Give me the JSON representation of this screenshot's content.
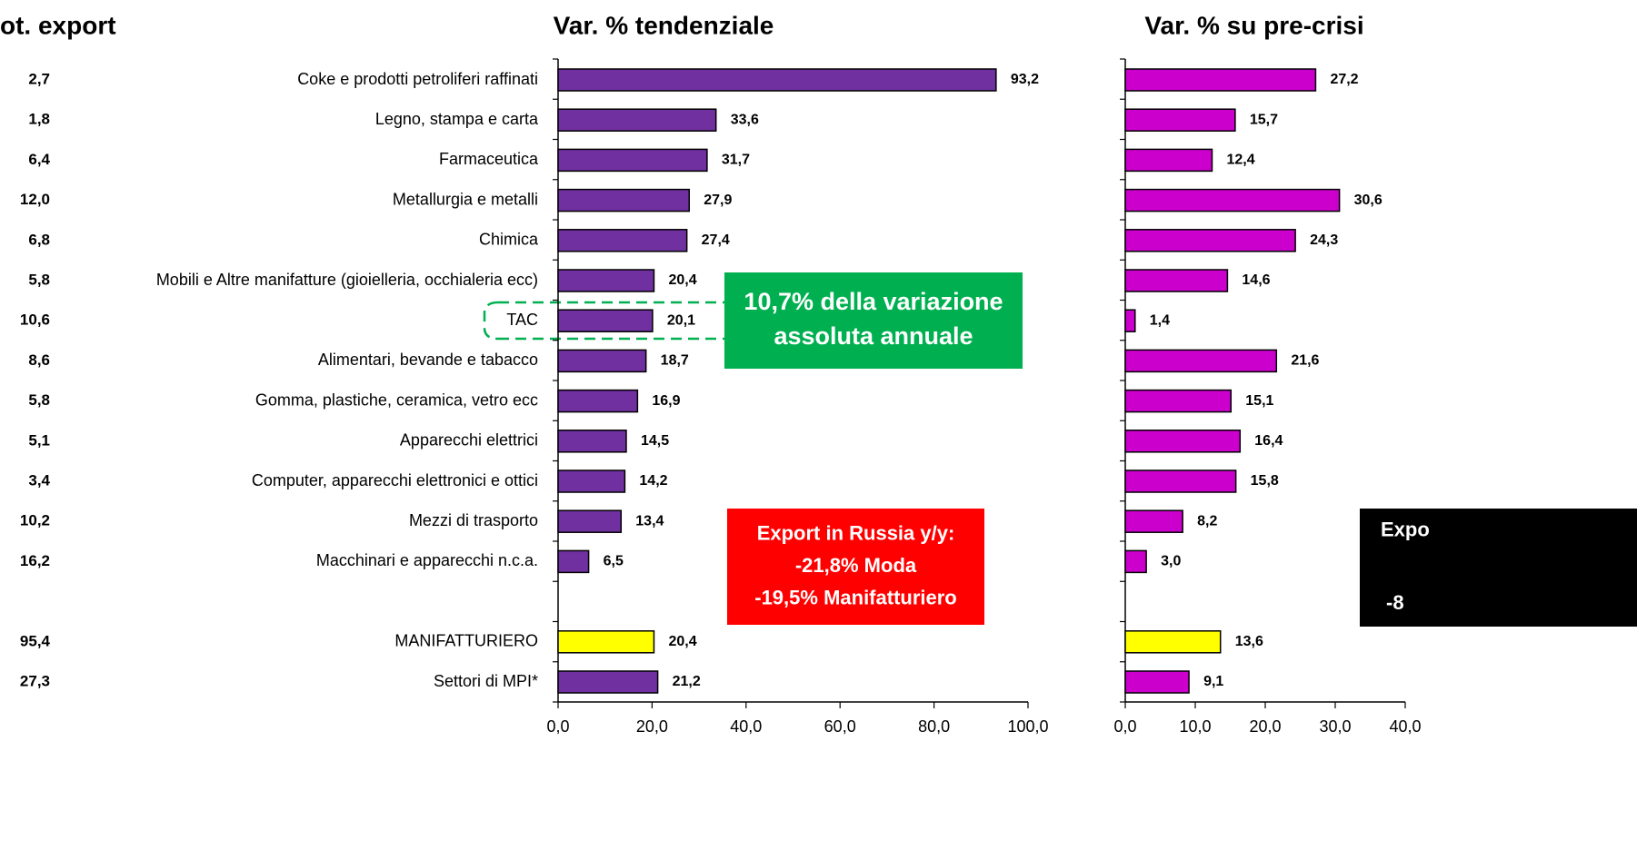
{
  "share_column": {
    "title": "ot. export",
    "values": [
      2.7,
      1.8,
      6.4,
      12.0,
      6.8,
      5.8,
      10.6,
      8.6,
      5.8,
      5.1,
      3.4,
      10.2,
      16.2,
      null,
      95.4,
      27.3
    ],
    "value_labels": [
      "2,7",
      "1,8",
      "6,4",
      "12,0",
      "6,8",
      "5,8",
      "10,6",
      "8,6",
      "5,8",
      "5,1",
      "3,4",
      "10,2",
      "16,2",
      null,
      "95,4",
      "27,3"
    ]
  },
  "chart_data": [
    {
      "type": "hbar",
      "title": "Var. % tendenziale",
      "categories": [
        "Coke e prodotti petroliferi raffinati",
        "Legno, stampa e carta",
        "Farmaceutica",
        "Metallurgia e metalli",
        "Chimica",
        "Mobili e Altre manifatture (gioielleria, occhialeria ecc)",
        "TAC",
        "Alimentari, bevande e tabacco",
        "Gomma, plastiche, ceramica, vetro ecc",
        "Apparecchi elettrici",
        "Computer, apparecchi elettronici e ottici",
        "Mezzi di trasporto",
        "Macchinari e apparecchi n.c.a.",
        null,
        "MANIFATTURIERO",
        "Settori di MPI*"
      ],
      "values": [
        93.2,
        33.6,
        31.7,
        27.9,
        27.4,
        20.4,
        20.1,
        18.7,
        16.9,
        14.5,
        14.2,
        13.4,
        6.5,
        null,
        20.4,
        21.2
      ],
      "value_labels": [
        "93,2",
        "33,6",
        "31,7",
        "27,9",
        "27,4",
        "20,4",
        "20,1",
        "18,7",
        "16,9",
        "14,5",
        "14,2",
        "13,4",
        "6,5",
        null,
        "20,4",
        "21,2"
      ],
      "colors": [
        "#7030a0",
        "#7030a0",
        "#7030a0",
        "#7030a0",
        "#7030a0",
        "#7030a0",
        "#7030a0",
        "#7030a0",
        "#7030a0",
        "#7030a0",
        "#7030a0",
        "#7030a0",
        "#7030a0",
        null,
        "#ffff00",
        "#7030a0"
      ],
      "xlim": [
        0,
        100
      ],
      "xticks": [
        {
          "value": 0,
          "label": "0,0"
        },
        {
          "value": 20,
          "label": "20,0"
        },
        {
          "value": 40,
          "label": "40,0"
        },
        {
          "value": 60,
          "label": "60,0"
        },
        {
          "value": 80,
          "label": "80,0"
        },
        {
          "value": 100,
          "label": "100,0"
        }
      ],
      "annotations": [
        {
          "lines": [
            "10,7% della variazione",
            "assoluta annuale"
          ],
          "fill": "#00b050"
        },
        {
          "lines": [
            "Export in Russia y/y:",
            "-21,8% Moda",
            "-19,5% Manifatturiero"
          ],
          "fill": "#ff0000"
        }
      ]
    },
    {
      "type": "hbar",
      "title": "Var. % su pre-crisi",
      "values": [
        27.2,
        15.7,
        12.4,
        30.6,
        24.3,
        14.6,
        1.4,
        21.6,
        15.1,
        16.4,
        15.8,
        8.2,
        3.0,
        null,
        13.6,
        9.1
      ],
      "value_labels": [
        "27,2",
        "15,7",
        "12,4",
        "30,6",
        "24,3",
        "14,6",
        "1,4",
        "21,6",
        "15,1",
        "16,4",
        "15,8",
        "8,2",
        "3,0",
        null,
        "13,6",
        "9,1"
      ],
      "colors": [
        "#cc00cc",
        "#cc00cc",
        "#cc00cc",
        "#cc00cc",
        "#cc00cc",
        "#cc00cc",
        "#cc00cc",
        "#cc00cc",
        "#cc00cc",
        "#cc00cc",
        "#cc00cc",
        "#cc00cc",
        "#cc00cc",
        null,
        "#ffff00",
        "#cc00cc"
      ],
      "xlim": [
        0,
        40
      ],
      "xticks": [
        {
          "value": 0,
          "label": "0,0"
        },
        {
          "value": 10,
          "label": "10,0"
        },
        {
          "value": 20,
          "label": "20,0"
        },
        {
          "value": 30,
          "label": "30,0"
        },
        {
          "value": 40,
          "label": "40,0"
        }
      ],
      "annotations": [
        {
          "lines": [
            "Expo",
            "-8"
          ],
          "fill": "#000000"
        }
      ]
    }
  ]
}
